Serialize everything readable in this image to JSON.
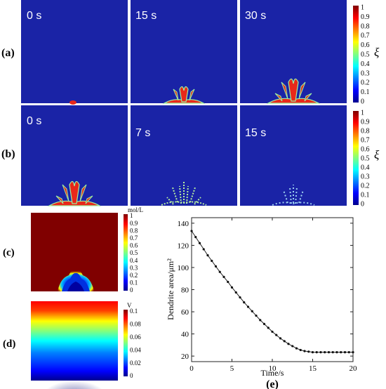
{
  "panels": {
    "a": {
      "label": "(a)",
      "times": [
        "0 s",
        "15 s",
        "30 s"
      ],
      "colorbar": {
        "symbol": "ξ",
        "ticks": [
          "1",
          "0.9",
          "0.8",
          "0.7",
          "0.6",
          "0.5",
          "0.4",
          "0.3",
          "0.2",
          "0.1",
          "0"
        ]
      }
    },
    "b": {
      "label": "(b)",
      "times": [
        "0 s",
        "7 s",
        "15 s"
      ],
      "colorbar": {
        "symbol": "ξ",
        "ticks": [
          "1",
          "0.9",
          "0.8",
          "0.7",
          "0.6",
          "0.5",
          "0.4",
          "0.3",
          "0.2",
          "0.1",
          "0"
        ]
      }
    },
    "c": {
      "label": "(c)",
      "colorbar": {
        "unit": "mol/L",
        "ticks": [
          "1",
          "0.9",
          "0.8",
          "0.7",
          "0.6",
          "0.5",
          "0.4",
          "0.3",
          "0.2",
          "0.1",
          "0"
        ]
      }
    },
    "d": {
      "label": "(d)",
      "colorbar": {
        "unit": "V",
        "ticks": [
          "0.1",
          "0.08",
          "0.06",
          "0.04",
          "0.02",
          "0"
        ]
      }
    },
    "e": {
      "label": "(e)"
    }
  },
  "colors": {
    "field_low": "#1a23a6",
    "jet": [
      "#00008f",
      "#0000ff",
      "#0080ff",
      "#00ffff",
      "#80ff80",
      "#ffff00",
      "#ff8000",
      "#ff0000",
      "#800000"
    ]
  },
  "chart_data": {
    "type": "line",
    "xlabel": "Time/s",
    "ylabel": "Dendrite area/μm²",
    "xlim": [
      0,
      20
    ],
    "ylim": [
      15,
      145
    ],
    "xticks": [
      0,
      5,
      10,
      15,
      20
    ],
    "yticks": [
      20,
      40,
      60,
      80,
      100,
      120,
      140
    ],
    "series": [
      {
        "x": [
          0,
          0.5,
          1,
          1.5,
          2,
          2.5,
          3,
          3.5,
          4,
          4.5,
          5,
          5.5,
          6,
          6.5,
          7,
          7.5,
          8,
          8.5,
          9,
          9.5,
          10,
          10.5,
          11,
          11.5,
          12,
          12.5,
          13,
          13.5,
          14,
          14.5,
          15,
          15.5,
          16,
          16.5,
          17,
          17.5,
          18,
          18.5,
          19,
          19.5,
          20
        ],
        "y": [
          133,
          127.5,
          122,
          116.5,
          111,
          106,
          101,
          96,
          91.5,
          87,
          82,
          77.5,
          73,
          68.5,
          64.5,
          60.5,
          56.5,
          52.5,
          49,
          45.5,
          42,
          39,
          36,
          33.5,
          31,
          29,
          27,
          25.5,
          24.5,
          24,
          23.5,
          23.5,
          23.5,
          23.5,
          23.5,
          23.5,
          23.5,
          23.5,
          23.5,
          23.5,
          23.5
        ]
      }
    ]
  }
}
